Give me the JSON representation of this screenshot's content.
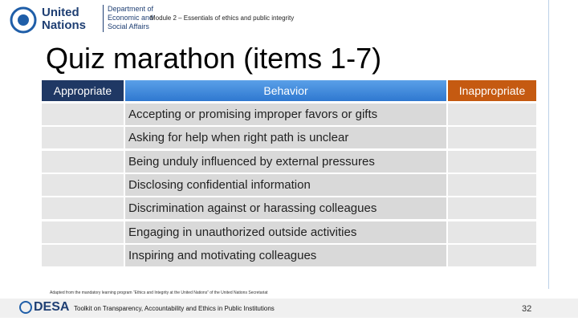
{
  "header": {
    "org_line1": "United",
    "org_line2": "Nations",
    "dept_line1": "Department of",
    "dept_line2": "Economic and",
    "dept_line3": "Social Affairs",
    "module": "Module 2 – Essentials of ethics and public integrity"
  },
  "title": "Quiz marathon (items 1-7)",
  "table": {
    "headers": [
      "Appropriate",
      "Behavior",
      "Inappropriate"
    ],
    "rows": [
      "Accepting or promising improper favors or gifts",
      "Asking for help when right path is unclear",
      "Being unduly influenced by external pressures",
      "Disclosing confidential information",
      "Discrimination against or harassing colleagues",
      "Engaging in unauthorized outside activities",
      "Inspiring and motivating colleagues"
    ]
  },
  "footer": {
    "source": "Adapted from the mandatory learning program “Ethics and Integrity at the United Nations” of the United Nations Secretariat",
    "desa": "DESA",
    "toolkit": "Toolkit on Transparency, Accountability and Ethics in Public Institutions",
    "page": "32"
  }
}
